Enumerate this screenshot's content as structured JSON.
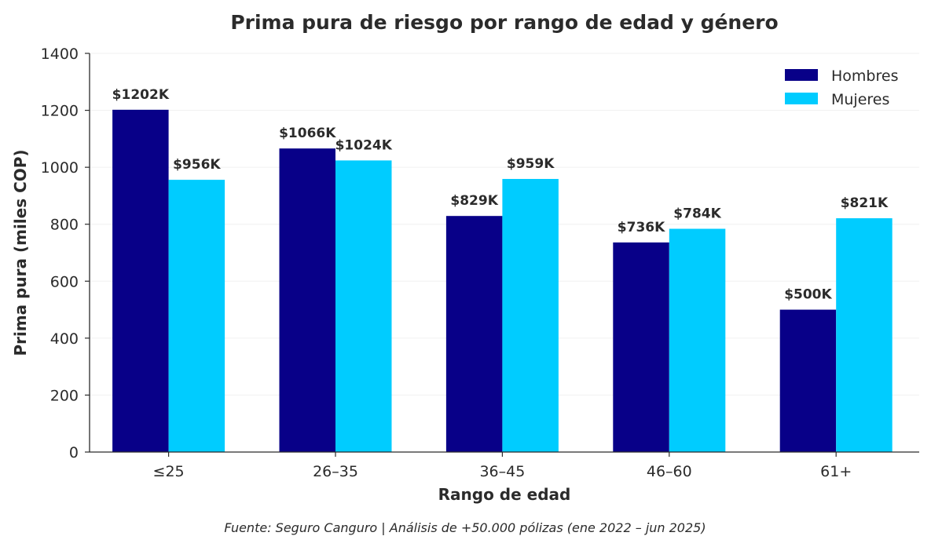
{
  "chart_data": {
    "type": "bar",
    "title": "Prima pura de riesgo por rango de edad y género",
    "xlabel": "Rango de edad",
    "ylabel": "Prima pura (miles COP)",
    "ylim": [
      0,
      1400
    ],
    "yticks": [
      0,
      200,
      400,
      600,
      800,
      1000,
      1200,
      1400
    ],
    "grid": true,
    "legend_position": "top-right",
    "categories": [
      "≤25",
      "26–35",
      "36–45",
      "46–60",
      "61+"
    ],
    "series": [
      {
        "name": "Hombres",
        "color": "#080088",
        "values": [
          1202,
          1066,
          829,
          736,
          500
        ],
        "labels": [
          "$1202K",
          "$1066K",
          "$829K",
          "$736K",
          "$500K"
        ]
      },
      {
        "name": "Mujeres",
        "color": "#00ccff",
        "values": [
          956,
          1024,
          959,
          784,
          821
        ],
        "labels": [
          "$956K",
          "$1024K",
          "$959K",
          "$784K",
          "$821K"
        ]
      }
    ],
    "footnote": "Fuente: Seguro Canguro | Análisis de +50.000 pólizas (ene 2022 – jun 2025)"
  }
}
